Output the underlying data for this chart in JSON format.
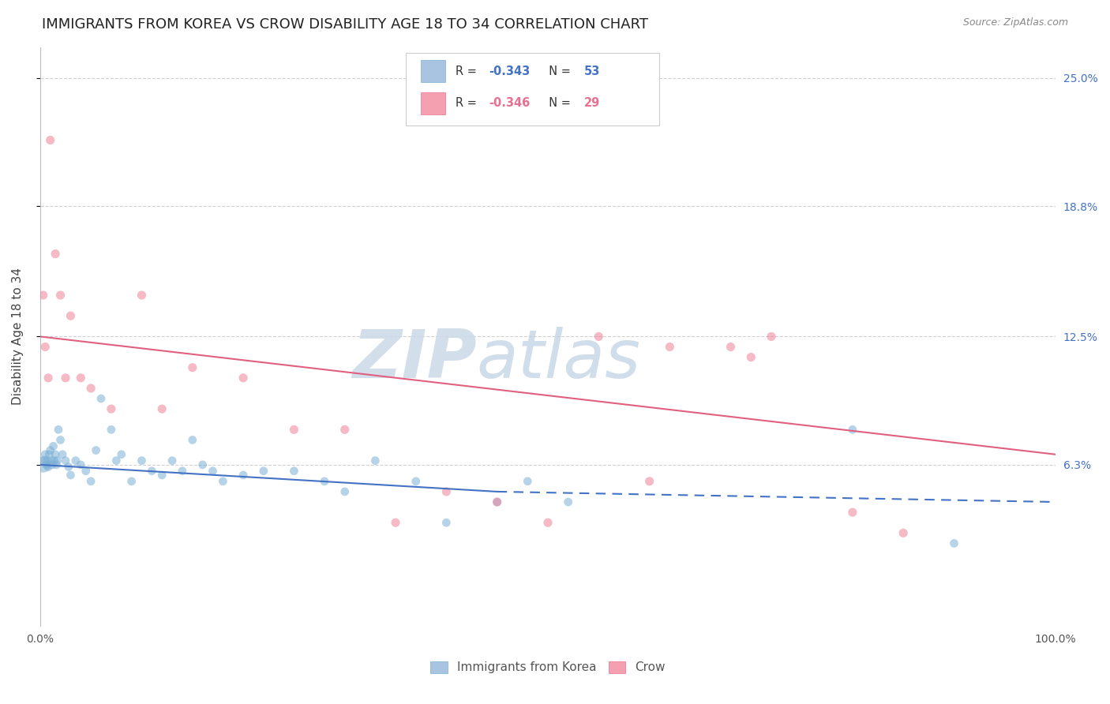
{
  "title": "IMMIGRANTS FROM KOREA VS CROW DISABILITY AGE 18 TO 34 CORRELATION CHART",
  "source": "Source: ZipAtlas.com",
  "ylabel": "Disability Age 18 to 34",
  "xlim": [
    0.0,
    100.0
  ],
  "ylim": [
    -1.5,
    26.5
  ],
  "yticks": [
    6.3,
    12.5,
    18.8,
    25.0
  ],
  "legend_labels": [
    "Immigrants from Korea",
    "Crow"
  ],
  "blue_color": "#7bafd4",
  "pink_color": "#f08098",
  "blue_scatter_x": [
    0.3,
    0.4,
    0.5,
    0.6,
    0.7,
    0.8,
    0.9,
    1.0,
    1.1,
    1.2,
    1.3,
    1.4,
    1.5,
    1.6,
    1.7,
    1.8,
    2.0,
    2.2,
    2.5,
    2.8,
    3.0,
    3.5,
    4.0,
    4.5,
    5.0,
    5.5,
    6.0,
    7.0,
    7.5,
    8.0,
    9.0,
    10.0,
    11.0,
    12.0,
    13.0,
    14.0,
    15.0,
    16.0,
    17.0,
    18.0,
    20.0,
    22.0,
    25.0,
    28.0,
    30.0,
    33.0,
    37.0,
    40.0,
    45.0,
    48.0,
    52.0,
    80.0,
    90.0
  ],
  "blue_scatter_y": [
    6.3,
    6.5,
    6.8,
    6.3,
    6.5,
    6.2,
    6.8,
    7.0,
    6.5,
    6.3,
    7.2,
    6.5,
    6.8,
    6.3,
    6.5,
    8.0,
    7.5,
    6.8,
    6.5,
    6.2,
    5.8,
    6.5,
    6.3,
    6.0,
    5.5,
    7.0,
    9.5,
    8.0,
    6.5,
    6.8,
    5.5,
    6.5,
    6.0,
    5.8,
    6.5,
    6.0,
    7.5,
    6.3,
    6.0,
    5.5,
    5.8,
    6.0,
    6.0,
    5.5,
    5.0,
    6.5,
    5.5,
    3.5,
    4.5,
    5.5,
    4.5,
    8.0,
    2.5
  ],
  "blue_scatter_sizes": [
    200,
    80,
    60,
    60,
    60,
    60,
    60,
    60,
    60,
    60,
    60,
    60,
    60,
    60,
    60,
    60,
    60,
    60,
    60,
    60,
    60,
    60,
    60,
    60,
    60,
    60,
    60,
    60,
    60,
    60,
    60,
    60,
    60,
    60,
    60,
    60,
    60,
    60,
    60,
    60,
    60,
    60,
    60,
    60,
    60,
    60,
    60,
    60,
    60,
    60,
    60,
    60,
    60
  ],
  "pink_scatter_x": [
    0.3,
    0.5,
    0.8,
    1.0,
    1.5,
    2.0,
    2.5,
    3.0,
    4.0,
    5.0,
    7.0,
    10.0,
    12.0,
    15.0,
    20.0,
    25.0,
    30.0,
    40.0,
    50.0,
    55.0,
    62.0,
    68.0,
    70.0,
    72.0,
    80.0,
    85.0,
    45.0,
    60.0,
    35.0
  ],
  "pink_scatter_y": [
    14.5,
    12.0,
    10.5,
    22.0,
    16.5,
    14.5,
    10.5,
    13.5,
    10.5,
    10.0,
    9.0,
    14.5,
    9.0,
    11.0,
    10.5,
    8.0,
    8.0,
    5.0,
    3.5,
    12.5,
    12.0,
    12.0,
    11.5,
    12.5,
    4.0,
    3.0,
    4.5,
    5.5,
    3.5
  ],
  "blue_trend_x": [
    0.0,
    45.0,
    100.0
  ],
  "blue_trend_y": [
    6.3,
    5.0,
    4.5
  ],
  "blue_solid_end": 45.0,
  "pink_trend_x": [
    0.0,
    100.0
  ],
  "pink_trend_y": [
    12.5,
    6.8
  ],
  "grid_color": "#d0d0d0",
  "background_color": "#ffffff",
  "title_fontsize": 13,
  "source_fontsize": 9,
  "axis_label_fontsize": 11,
  "tick_fontsize": 10,
  "right_tick_color": "#4472c4",
  "legend_R1": "-0.343",
  "legend_N1": "53",
  "legend_R2": "-0.346",
  "legend_N2": "29",
  "legend_blue_color": "#a8c4e0",
  "legend_pink_color": "#f4a0b0"
}
